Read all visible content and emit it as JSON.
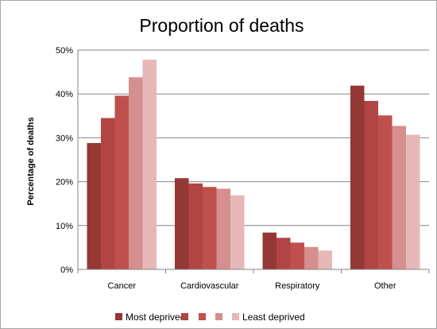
{
  "chart_data": {
    "type": "bar",
    "title": "Proportion of deaths",
    "xlabel": "",
    "ylabel": "Percentage of deaths",
    "ylim": [
      0,
      50
    ],
    "yticks": [
      "0%",
      "10%",
      "20%",
      "30%",
      "40%",
      "50%"
    ],
    "grid": true,
    "legend_position": "bottom",
    "categories": [
      "Cancer",
      "Cardiovascular",
      "Respiratory",
      "Other"
    ],
    "series": [
      {
        "name": "Most deprived",
        "color": "#953735",
        "values": [
          28.8,
          20.8,
          8.4,
          41.9
        ]
      },
      {
        "name": "",
        "color": "#b04543",
        "values": [
          34.5,
          19.6,
          7.2,
          38.4
        ]
      },
      {
        "name": "",
        "color": "#c0504d",
        "values": [
          39.6,
          18.8,
          6.1,
          35.1
        ]
      },
      {
        "name": "",
        "color": "#d58f8e",
        "values": [
          43.8,
          18.4,
          5.1,
          32.7
        ]
      },
      {
        "name": "Least deprived",
        "color": "#e6b9b8",
        "values": [
          47.8,
          16.9,
          4.3,
          30.7
        ]
      }
    ]
  }
}
